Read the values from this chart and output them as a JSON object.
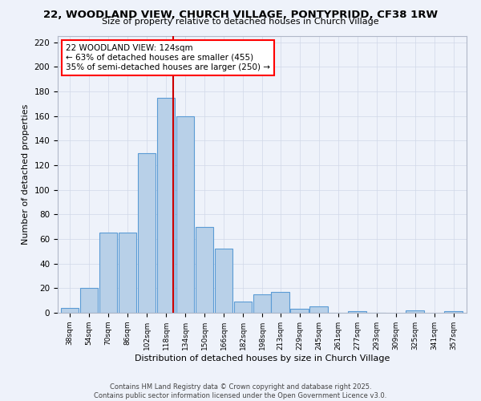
{
  "title": "22, WOODLAND VIEW, CHURCH VILLAGE, PONTYPRIDD, CF38 1RW",
  "subtitle": "Size of property relative to detached houses in Church Village",
  "xlabel": "Distribution of detached houses by size in Church Village",
  "ylabel": "Number of detached properties",
  "bar_values": [
    4,
    20,
    65,
    65,
    130,
    175,
    160,
    70,
    52,
    9,
    15,
    17,
    3,
    5,
    0,
    1,
    0,
    2,
    1
  ],
  "bar_centers": [
    38,
    54,
    70,
    86,
    102,
    118,
    134,
    150,
    166,
    182,
    198,
    213,
    229,
    245,
    261,
    277,
    293,
    325,
    357
  ],
  "bin_width": 15,
  "tick_labels": [
    "38sqm",
    "54sqm",
    "70sqm",
    "86sqm",
    "102sqm",
    "118sqm",
    "134sqm",
    "150sqm",
    "166sqm",
    "182sqm",
    "198sqm",
    "213sqm",
    "229sqm",
    "245sqm",
    "261sqm",
    "277sqm",
    "293sqm",
    "309sqm",
    "325sqm",
    "341sqm",
    "357sqm"
  ],
  "tick_positions": [
    38,
    54,
    70,
    86,
    102,
    118,
    134,
    150,
    166,
    182,
    198,
    213,
    229,
    245,
    261,
    277,
    293,
    309,
    325,
    341,
    357
  ],
  "vline_x": 124,
  "ylim": [
    0,
    225
  ],
  "xlim": [
    28,
    368
  ],
  "yticks": [
    0,
    20,
    40,
    60,
    80,
    100,
    120,
    140,
    160,
    180,
    200,
    220
  ],
  "bar_color": "#b8d0e8",
  "bar_edge_color": "#5b9bd5",
  "vline_color": "#cc0000",
  "annotation_box_text": "22 WOODLAND VIEW: 124sqm\n← 63% of detached houses are smaller (455)\n35% of semi-detached houses are larger (250) →",
  "footer_line1": "Contains HM Land Registry data © Crown copyright and database right 2025.",
  "footer_line2": "Contains public sector information licensed under the Open Government Licence v3.0.",
  "bg_color": "#eef2fa",
  "grid_color": "#d0d8e8"
}
